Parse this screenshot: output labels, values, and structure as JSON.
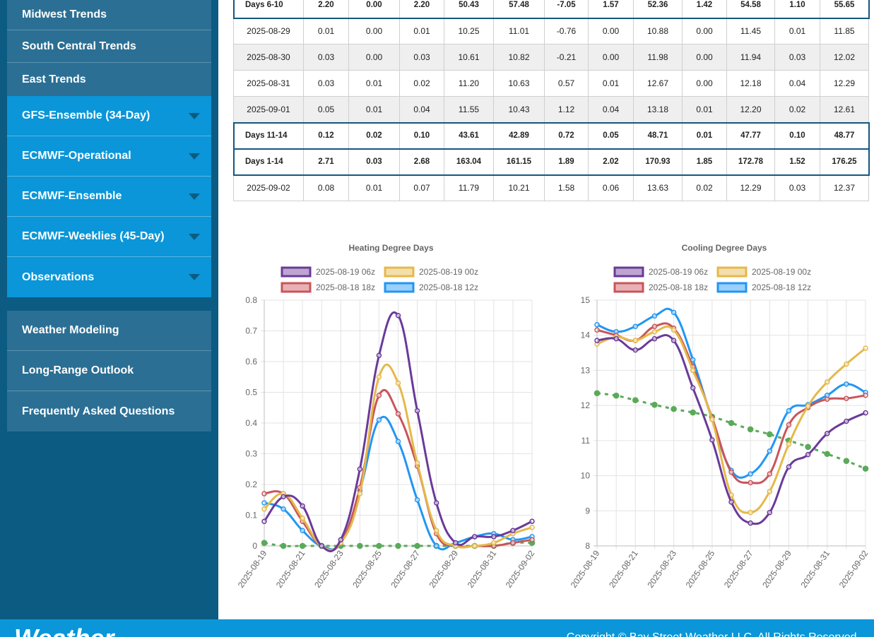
{
  "sidebar": {
    "top_items": [
      {
        "label": "Midwest Trends"
      },
      {
        "label": "South Central Trends"
      },
      {
        "label": "East Trends"
      }
    ],
    "dropdowns": [
      {
        "label": "GFS-Ensemble (34-Day)"
      },
      {
        "label": "ECMWF-Operational"
      },
      {
        "label": "ECMWF-Ensemble"
      },
      {
        "label": "ECMWF-Weeklies (45-Day)"
      },
      {
        "label": "Observations"
      }
    ],
    "bottom_items": [
      {
        "label": "Weather Modeling"
      },
      {
        "label": "Long-Range Outlook"
      },
      {
        "label": "Frequently Asked Questions"
      }
    ]
  },
  "table": {
    "rows": [
      {
        "kind": "sum",
        "cells": [
          "Days 6-10",
          "2.20",
          "0.00",
          "2.20",
          "50.43",
          "57.48",
          "-7.05",
          "1.57",
          "52.36",
          "1.42",
          "54.58",
          "1.10",
          "55.65"
        ]
      },
      {
        "kind": "plain",
        "cells": [
          "2025-08-29",
          "0.01",
          "0.00",
          "0.01",
          "10.25",
          "11.01",
          "-0.76",
          "0.00",
          "10.88",
          "0.00",
          "11.45",
          "0.01",
          "11.85"
        ]
      },
      {
        "kind": "alt",
        "cells": [
          "2025-08-30",
          "0.03",
          "0.00",
          "0.03",
          "10.61",
          "10.82",
          "-0.21",
          "0.00",
          "11.98",
          "0.00",
          "11.94",
          "0.03",
          "12.02"
        ]
      },
      {
        "kind": "plain",
        "cells": [
          "2025-08-31",
          "0.03",
          "0.01",
          "0.02",
          "11.20",
          "10.63",
          "0.57",
          "0.01",
          "12.67",
          "0.00",
          "12.18",
          "0.04",
          "12.29"
        ]
      },
      {
        "kind": "alt",
        "cells": [
          "2025-09-01",
          "0.05",
          "0.01",
          "0.04",
          "11.55",
          "10.43",
          "1.12",
          "0.04",
          "13.18",
          "0.01",
          "12.20",
          "0.02",
          "12.61"
        ]
      },
      {
        "kind": "sum",
        "cells": [
          "Days 11-14",
          "0.12",
          "0.02",
          "0.10",
          "43.61",
          "42.89",
          "0.72",
          "0.05",
          "48.71",
          "0.01",
          "47.77",
          "0.10",
          "48.77"
        ]
      },
      {
        "kind": "sum",
        "cells": [
          "Days 1-14",
          "2.71",
          "0.03",
          "2.68",
          "163.04",
          "161.15",
          "1.89",
          "2.02",
          "170.93",
          "1.85",
          "172.78",
          "1.52",
          "176.25"
        ]
      },
      {
        "kind": "plain",
        "cells": [
          "2025-09-02",
          "0.08",
          "0.01",
          "0.07",
          "11.79",
          "10.21",
          "1.58",
          "0.06",
          "13.63",
          "0.02",
          "12.29",
          "0.03",
          "12.37"
        ]
      }
    ]
  },
  "chart_data": [
    {
      "type": "line",
      "title": "Heating Degree Days",
      "x": [
        "2025-08-19",
        "2025-08-20",
        "2025-08-21",
        "2025-08-22",
        "2025-08-23",
        "2025-08-24",
        "2025-08-25",
        "2025-08-26",
        "2025-08-27",
        "2025-08-28",
        "2025-08-29",
        "2025-08-30",
        "2025-08-31",
        "2025-09-01",
        "2025-09-02"
      ],
      "x_tick_labels": [
        "2025-08-19",
        "2025-08-21",
        "2025-08-23",
        "2025-08-25",
        "2025-08-27",
        "2025-08-29",
        "2025-08-31",
        "2025-09-02"
      ],
      "y_ticks": [
        "0",
        "0.1",
        "0.2",
        "0.3",
        "0.4",
        "0.5",
        "0.6",
        "0.7",
        "0.8"
      ],
      "ylim": [
        0,
        0.8
      ],
      "legend_position": "top",
      "grid": true,
      "series": [
        {
          "name": "2025-08-19 06z",
          "color": "#6a3a99",
          "dashed": false,
          "points": [
            [
              0,
              0.08
            ],
            [
              1,
              0.16
            ],
            [
              2,
              0.13
            ],
            [
              3,
              0.0
            ],
            [
              4,
              0.02
            ],
            [
              5,
              0.25
            ],
            [
              6,
              0.62
            ],
            [
              7,
              0.75
            ],
            [
              8,
              0.44
            ],
            [
              9,
              0.14
            ],
            [
              10,
              0.01
            ],
            [
              11,
              0.03
            ],
            [
              12,
              0.03
            ],
            [
              13,
              0.05
            ],
            [
              14,
              0.08
            ]
          ]
        },
        {
          "name": "2025-08-19 00z",
          "color": "#e5b94a",
          "dashed": false,
          "points": [
            [
              0,
              0.12
            ],
            [
              1,
              0.17
            ],
            [
              2,
              0.09
            ],
            [
              3,
              0.0
            ],
            [
              4,
              0.01
            ],
            [
              5,
              0.17
            ],
            [
              6,
              0.55
            ],
            [
              7,
              0.53
            ],
            [
              8,
              0.27
            ],
            [
              9,
              0.05
            ],
            [
              10,
              0.0
            ],
            [
              11,
              0.0
            ],
            [
              12,
              0.01
            ],
            [
              13,
              0.04
            ],
            [
              14,
              0.06
            ]
          ]
        },
        {
          "name": "2025-08-18 18z",
          "color": "#c9555a",
          "dashed": false,
          "points": [
            [
              0,
              0.17
            ],
            [
              1,
              0.17
            ],
            [
              2,
              0.08
            ],
            [
              3,
              0.0
            ],
            [
              4,
              0.01
            ],
            [
              5,
              0.19
            ],
            [
              6,
              0.49
            ],
            [
              7,
              0.43
            ],
            [
              8,
              0.26
            ],
            [
              9,
              0.04
            ],
            [
              10,
              0.0
            ],
            [
              11,
              0.0
            ],
            [
              12,
              0.0
            ],
            [
              13,
              0.01
            ],
            [
              14,
              0.02
            ]
          ]
        },
        {
          "name": "2025-08-18 12z",
          "color": "#2196f3",
          "dashed": false,
          "points": [
            [
              0,
              0.14
            ],
            [
              1,
              0.12
            ],
            [
              2,
              0.05
            ],
            [
              3,
              0.0
            ],
            [
              4,
              0.01
            ],
            [
              5,
              0.18
            ],
            [
              6,
              0.41
            ],
            [
              7,
              0.34
            ],
            [
              8,
              0.15
            ],
            [
              9,
              0.0
            ],
            [
              10,
              0.01
            ],
            [
              11,
              0.03
            ],
            [
              12,
              0.04
            ],
            [
              13,
              0.02
            ],
            [
              14,
              0.03
            ]
          ]
        },
        {
          "name": "",
          "color": "#5aaa5a",
          "dashed": true,
          "points": [
            [
              0,
              0.01
            ],
            [
              1,
              0.0
            ],
            [
              2,
              0.0
            ],
            [
              3,
              0.0
            ],
            [
              4,
              0.0
            ],
            [
              5,
              0.0
            ],
            [
              6,
              0.0
            ],
            [
              7,
              0.0
            ],
            [
              8,
              0.0
            ],
            [
              9,
              0.0
            ],
            [
              10,
              0.0
            ],
            [
              11,
              0.0
            ],
            [
              12,
              0.0
            ],
            [
              13,
              0.01
            ],
            [
              14,
              0.01
            ]
          ]
        }
      ]
    },
    {
      "type": "line",
      "title": "Cooling Degree Days",
      "x": [
        "2025-08-19",
        "2025-08-20",
        "2025-08-21",
        "2025-08-22",
        "2025-08-23",
        "2025-08-24",
        "2025-08-25",
        "2025-08-26",
        "2025-08-27",
        "2025-08-28",
        "2025-08-29",
        "2025-08-30",
        "2025-08-31",
        "2025-09-01",
        "2025-09-02"
      ],
      "x_tick_labels": [
        "2025-08-19",
        "2025-08-21",
        "2025-08-23",
        "2025-08-25",
        "2025-08-27",
        "2025-08-29",
        "2025-08-31",
        "2025-09-02"
      ],
      "y_ticks": [
        "8",
        "9",
        "10",
        "11",
        "12",
        "13",
        "14",
        "15"
      ],
      "ylim": [
        8,
        15
      ],
      "legend_position": "top",
      "grid": true,
      "series": [
        {
          "name": "2025-08-19 06z",
          "color": "#6a3a99",
          "dashed": false,
          "points": [
            [
              0,
              13.85
            ],
            [
              1,
              13.9
            ],
            [
              2,
              13.58
            ],
            [
              3,
              13.9
            ],
            [
              4,
              13.85
            ],
            [
              5,
              12.5
            ],
            [
              6,
              11.02
            ],
            [
              7,
              9.25
            ],
            [
              8,
              8.65
            ],
            [
              9,
              8.95
            ],
            [
              10,
              10.25
            ],
            [
              11,
              10.6
            ],
            [
              12,
              11.2
            ],
            [
              13,
              11.55
            ],
            [
              14,
              11.79
            ]
          ]
        },
        {
          "name": "2025-08-19 00z",
          "color": "#e5b94a",
          "dashed": false,
          "points": [
            [
              0,
              13.75
            ],
            [
              1,
              13.95
            ],
            [
              2,
              13.85
            ],
            [
              3,
              14.1
            ],
            [
              4,
              14.15
            ],
            [
              5,
              13.0
            ],
            [
              6,
              11.6
            ],
            [
              7,
              9.45
            ],
            [
              8,
              8.95
            ],
            [
              9,
              9.55
            ],
            [
              10,
              10.9
            ],
            [
              11,
              11.98
            ],
            [
              12,
              12.67
            ],
            [
              13,
              13.18
            ],
            [
              14,
              13.63
            ]
          ]
        },
        {
          "name": "2025-08-18 18z",
          "color": "#c9555a",
          "dashed": false,
          "points": [
            [
              0,
              14.15
            ],
            [
              1,
              14.0
            ],
            [
              2,
              13.85
            ],
            [
              3,
              14.25
            ],
            [
              4,
              14.2
            ],
            [
              5,
              13.1
            ],
            [
              6,
              11.65
            ],
            [
              7,
              10.1
            ],
            [
              8,
              9.8
            ],
            [
              9,
              10.05
            ],
            [
              10,
              11.45
            ],
            [
              11,
              11.94
            ],
            [
              12,
              12.18
            ],
            [
              13,
              12.2
            ],
            [
              14,
              12.29
            ]
          ]
        },
        {
          "name": "2025-08-18 12z",
          "color": "#2196f3",
          "dashed": false,
          "points": [
            [
              0,
              14.3
            ],
            [
              1,
              14.1
            ],
            [
              2,
              14.25
            ],
            [
              3,
              14.55
            ],
            [
              4,
              14.65
            ],
            [
              5,
              13.3
            ],
            [
              6,
              11.6
            ],
            [
              7,
              10.15
            ],
            [
              8,
              10.05
            ],
            [
              9,
              10.7
            ],
            [
              10,
              11.85
            ],
            [
              11,
              12.02
            ],
            [
              12,
              12.29
            ],
            [
              13,
              12.61
            ],
            [
              14,
              12.37
            ]
          ]
        },
        {
          "name": "",
          "color": "#5aaa5a",
          "dashed": true,
          "points": [
            [
              0,
              12.35
            ],
            [
              1,
              12.28
            ],
            [
              2,
              12.15
            ],
            [
              3,
              12.02
            ],
            [
              4,
              11.9
            ],
            [
              5,
              11.8
            ],
            [
              6,
              11.68
            ],
            [
              7,
              11.5
            ],
            [
              8,
              11.32
            ],
            [
              9,
              11.18
            ],
            [
              10,
              11.0
            ],
            [
              11,
              10.82
            ],
            [
              12,
              10.62
            ],
            [
              13,
              10.42
            ],
            [
              14,
              10.2
            ]
          ]
        }
      ]
    }
  ],
  "footer": {
    "logo": "Weather",
    "copyright": "Copyright © Bay Street Weather LLC. All Rights Reserved."
  }
}
